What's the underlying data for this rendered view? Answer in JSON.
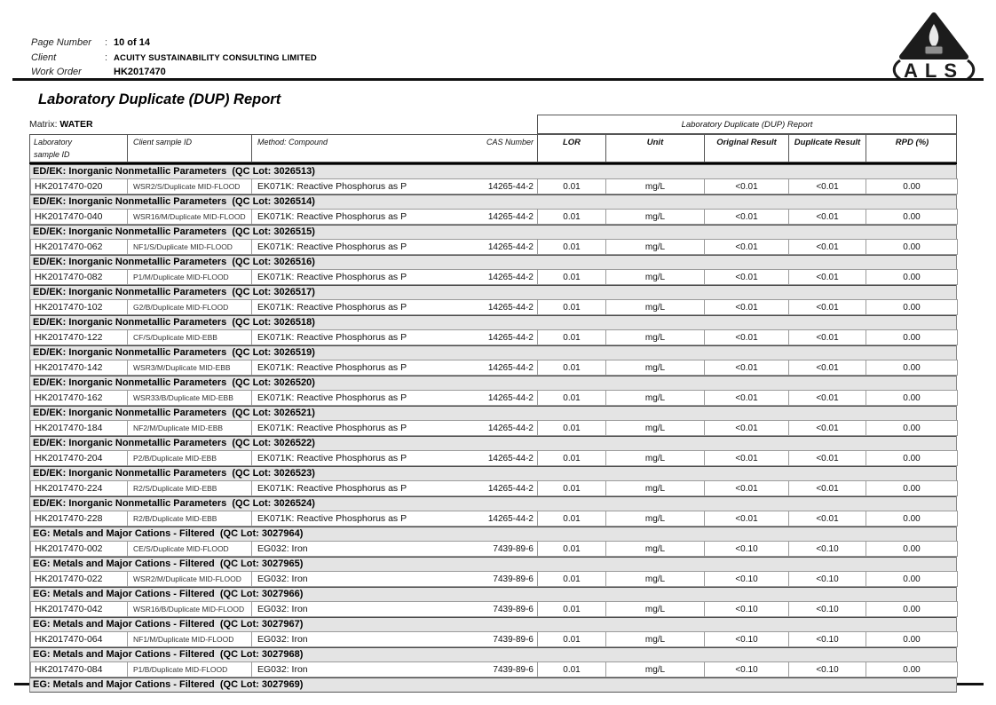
{
  "header": {
    "fields": [
      {
        "label": "Page Number",
        "sep": ":",
        "value": "10 of 14"
      },
      {
        "label": "Client",
        "sep": ":",
        "value": "ACUITY SUSTAINABILITY CONSULTING LIMITED"
      },
      {
        "label": "Work Order",
        "sep": "",
        "value": "HK2017470"
      }
    ],
    "logo_text": "ALS"
  },
  "title": "Laboratory Duplicate (DUP) Report",
  "matrix": {
    "label": "Matrix:",
    "value": "WATER"
  },
  "table": {
    "span_header": "Laboratory Duplicate (DUP) Report",
    "headers": {
      "lab_line1": "Laboratory",
      "lab_line2": "sample ID",
      "client": "Client sample ID",
      "method": "Method:  Compound",
      "cas": "CAS Number",
      "lor": "LOR",
      "unit": "Unit",
      "original": "Original Result",
      "duplicate": "Duplicate Result",
      "rpd": "RPD (%)"
    },
    "groups": [
      {
        "title": "ED/EK: Inorganic Nonmetallic Parameters  (QC Lot: 3026513)",
        "row": {
          "lab_id": "HK2017470-020",
          "client_id": "WSR2/S/Duplicate MID-FLOOD",
          "method": "EK071K: Reactive Phosphorus as P",
          "cas": "14265-44-2",
          "lor": "0.01",
          "unit": "mg/L",
          "original": "<0.01",
          "duplicate": "<0.01",
          "rpd": "0.00"
        }
      },
      {
        "title": "ED/EK: Inorganic Nonmetallic Parameters  (QC Lot: 3026514)",
        "row": {
          "lab_id": "HK2017470-040",
          "client_id": "WSR16/M/Duplicate MID-FLOOD",
          "method": "EK071K: Reactive Phosphorus as P",
          "cas": "14265-44-2",
          "lor": "0.01",
          "unit": "mg/L",
          "original": "<0.01",
          "duplicate": "<0.01",
          "rpd": "0.00"
        }
      },
      {
        "title": "ED/EK: Inorganic Nonmetallic Parameters  (QC Lot: 3026515)",
        "row": {
          "lab_id": "HK2017470-062",
          "client_id": "NF1/S/Duplicate MID-FLOOD",
          "method": "EK071K: Reactive Phosphorus as P",
          "cas": "14265-44-2",
          "lor": "0.01",
          "unit": "mg/L",
          "original": "<0.01",
          "duplicate": "<0.01",
          "rpd": "0.00"
        }
      },
      {
        "title": "ED/EK: Inorganic Nonmetallic Parameters  (QC Lot: 3026516)",
        "row": {
          "lab_id": "HK2017470-082",
          "client_id": "P1/M/Duplicate MID-FLOOD",
          "method": "EK071K: Reactive Phosphorus as P",
          "cas": "14265-44-2",
          "lor": "0.01",
          "unit": "mg/L",
          "original": "<0.01",
          "duplicate": "<0.01",
          "rpd": "0.00"
        }
      },
      {
        "title": "ED/EK: Inorganic Nonmetallic Parameters  (QC Lot: 3026517)",
        "row": {
          "lab_id": "HK2017470-102",
          "client_id": "G2/B/Duplicate MID-FLOOD",
          "method": "EK071K: Reactive Phosphorus as P",
          "cas": "14265-44-2",
          "lor": "0.01",
          "unit": "mg/L",
          "original": "<0.01",
          "duplicate": "<0.01",
          "rpd": "0.00"
        }
      },
      {
        "title": "ED/EK: Inorganic Nonmetallic Parameters  (QC Lot: 3026518)",
        "row": {
          "lab_id": "HK2017470-122",
          "client_id": "CF/S/Duplicate MID-EBB",
          "method": "EK071K: Reactive Phosphorus as P",
          "cas": "14265-44-2",
          "lor": "0.01",
          "unit": "mg/L",
          "original": "<0.01",
          "duplicate": "<0.01",
          "rpd": "0.00"
        }
      },
      {
        "title": "ED/EK: Inorganic Nonmetallic Parameters  (QC Lot: 3026519)",
        "row": {
          "lab_id": "HK2017470-142",
          "client_id": "WSR3/M/Duplicate MID-EBB",
          "method": "EK071K: Reactive Phosphorus as P",
          "cas": "14265-44-2",
          "lor": "0.01",
          "unit": "mg/L",
          "original": "<0.01",
          "duplicate": "<0.01",
          "rpd": "0.00"
        }
      },
      {
        "title": "ED/EK: Inorganic Nonmetallic Parameters  (QC Lot: 3026520)",
        "row": {
          "lab_id": "HK2017470-162",
          "client_id": "WSR33/B/Duplicate MID-EBB",
          "method": "EK071K: Reactive Phosphorus as P",
          "cas": "14265-44-2",
          "lor": "0.01",
          "unit": "mg/L",
          "original": "<0.01",
          "duplicate": "<0.01",
          "rpd": "0.00"
        }
      },
      {
        "title": "ED/EK: Inorganic Nonmetallic Parameters  (QC Lot: 3026521)",
        "row": {
          "lab_id": "HK2017470-184",
          "client_id": "NF2/M/Duplicate MID-EBB",
          "method": "EK071K: Reactive Phosphorus as P",
          "cas": "14265-44-2",
          "lor": "0.01",
          "unit": "mg/L",
          "original": "<0.01",
          "duplicate": "<0.01",
          "rpd": "0.00"
        }
      },
      {
        "title": "ED/EK: Inorganic Nonmetallic Parameters  (QC Lot: 3026522)",
        "row": {
          "lab_id": "HK2017470-204",
          "client_id": "P2/B/Duplicate MID-EBB",
          "method": "EK071K: Reactive Phosphorus as P",
          "cas": "14265-44-2",
          "lor": "0.01",
          "unit": "mg/L",
          "original": "<0.01",
          "duplicate": "<0.01",
          "rpd": "0.00"
        }
      },
      {
        "title": "ED/EK: Inorganic Nonmetallic Parameters  (QC Lot: 3026523)",
        "row": {
          "lab_id": "HK2017470-224",
          "client_id": "R2/S/Duplicate MID-EBB",
          "method": "EK071K: Reactive Phosphorus as P",
          "cas": "14265-44-2",
          "lor": "0.01",
          "unit": "mg/L",
          "original": "<0.01",
          "duplicate": "<0.01",
          "rpd": "0.00"
        }
      },
      {
        "title": "ED/EK: Inorganic Nonmetallic Parameters  (QC Lot: 3026524)",
        "row": {
          "lab_id": "HK2017470-228",
          "client_id": "R2/B/Duplicate MID-EBB",
          "method": "EK071K: Reactive Phosphorus as P",
          "cas": "14265-44-2",
          "lor": "0.01",
          "unit": "mg/L",
          "original": "<0.01",
          "duplicate": "<0.01",
          "rpd": "0.00"
        }
      },
      {
        "title": "EG: Metals and Major Cations - Filtered  (QC Lot: 3027964)",
        "row": {
          "lab_id": "HK2017470-002",
          "client_id": "CE/S/Duplicate MID-FLOOD",
          "method": "EG032: Iron",
          "cas": "7439-89-6",
          "lor": "0.01",
          "unit": "mg/L",
          "original": "<0.10",
          "duplicate": "<0.10",
          "rpd": "0.00"
        }
      },
      {
        "title": "EG: Metals and Major Cations - Filtered  (QC Lot: 3027965)",
        "row": {
          "lab_id": "HK2017470-022",
          "client_id": "WSR2/M/Duplicate MID-FLOOD",
          "method": "EG032: Iron",
          "cas": "7439-89-6",
          "lor": "0.01",
          "unit": "mg/L",
          "original": "<0.10",
          "duplicate": "<0.10",
          "rpd": "0.00"
        }
      },
      {
        "title": "EG: Metals and Major Cations - Filtered  (QC Lot: 3027966)",
        "row": {
          "lab_id": "HK2017470-042",
          "client_id": "WSR16/B/Duplicate MID-FLOOD",
          "method": "EG032: Iron",
          "cas": "7439-89-6",
          "lor": "0.01",
          "unit": "mg/L",
          "original": "<0.10",
          "duplicate": "<0.10",
          "rpd": "0.00"
        }
      },
      {
        "title": "EG: Metals and Major Cations - Filtered  (QC Lot: 3027967)",
        "row": {
          "lab_id": "HK2017470-064",
          "client_id": "NF1/M/Duplicate MID-FLOOD",
          "method": "EG032: Iron",
          "cas": "7439-89-6",
          "lor": "0.01",
          "unit": "mg/L",
          "original": "<0.10",
          "duplicate": "<0.10",
          "rpd": "0.00"
        }
      },
      {
        "title": "EG: Metals and Major Cations - Filtered  (QC Lot: 3027968)",
        "row": {
          "lab_id": "HK2017470-084",
          "client_id": "P1/B/Duplicate MID-FLOOD",
          "method": "EG032: Iron",
          "cas": "7439-89-6",
          "lor": "0.01",
          "unit": "mg/L",
          "original": "<0.10",
          "duplicate": "<0.10",
          "rpd": "0.00"
        }
      },
      {
        "title": "EG: Metals and Major Cations - Filtered  (QC Lot: 3027969)",
        "row": null
      }
    ]
  }
}
